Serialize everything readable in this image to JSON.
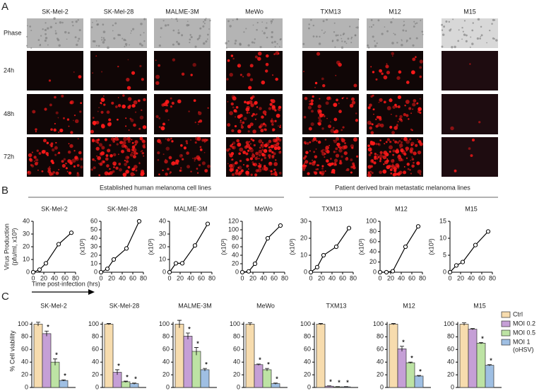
{
  "panel_labels": [
    "A",
    "B",
    "C"
  ],
  "image_panel": {
    "columns": [
      "SK-Mel-2",
      "SK-Mel-28",
      "MALME-3M",
      "MeWo",
      "TXM13",
      "M12",
      "M15"
    ],
    "rows": [
      "Phase",
      "24h",
      "48h",
      "72h"
    ]
  },
  "group_headers": [
    "Established human melanoma cell lines",
    "Patient derived brain metastatic melanoma lines"
  ],
  "x_label": "Time post-infection (hrs)",
  "legend_note": "(oHSV)",
  "chart_data": [
    {
      "type": "line",
      "title": "SK-Mel-2",
      "y_label": [
        "Virus Production",
        "(pfu/ml, x10³)"
      ],
      "x": [
        0,
        12,
        24,
        48,
        72
      ],
      "values": [
        0,
        2,
        7,
        22,
        31
      ],
      "xlim": [
        0,
        80
      ],
      "xticks": [
        0,
        20,
        40,
        60,
        80
      ],
      "ylim": [
        0,
        40
      ],
      "yticks": [
        0,
        10,
        20,
        30,
        40
      ]
    },
    {
      "type": "line",
      "title": "SK-Mel-28",
      "y_label": [
        "(x10³)"
      ],
      "x": [
        0,
        12,
        24,
        48,
        72
      ],
      "values": [
        0,
        4,
        15,
        28,
        60
      ],
      "xlim": [
        0,
        80
      ],
      "xticks": [
        0,
        20,
        40,
        60,
        80
      ],
      "ylim": [
        0,
        60
      ],
      "yticks": [
        0,
        10,
        20,
        30,
        40,
        50,
        60
      ]
    },
    {
      "type": "line",
      "title": "MALME-3M",
      "y_label": [
        "(x10³)"
      ],
      "x": [
        0,
        12,
        24,
        48,
        72
      ],
      "values": [
        0,
        7,
        7,
        21,
        38
      ],
      "xlim": [
        0,
        80
      ],
      "xticks": [
        0,
        20,
        40,
        60,
        80
      ],
      "ylim": [
        0,
        40
      ],
      "yticks": [
        0,
        10,
        20,
        30,
        40
      ]
    },
    {
      "type": "line",
      "title": "MeWo",
      "y_label": [
        "(x10³)"
      ],
      "x": [
        0,
        12,
        24,
        48,
        72
      ],
      "values": [
        0,
        2,
        20,
        80,
        110
      ],
      "xlim": [
        0,
        80
      ],
      "xticks": [
        0,
        20,
        40,
        60,
        80
      ],
      "ylim": [
        0,
        120
      ],
      "yticks": [
        0,
        20,
        40,
        60,
        80,
        100,
        120
      ]
    },
    {
      "type": "line",
      "title": "TXM13",
      "y_label": [
        "(x10³)"
      ],
      "x": [
        0,
        12,
        24,
        48,
        72
      ],
      "values": [
        0,
        3,
        10,
        15,
        26
      ],
      "xlim": [
        0,
        80
      ],
      "xticks": [
        0,
        20,
        40,
        60,
        80
      ],
      "ylim": [
        0,
        30
      ],
      "yticks": [
        0,
        10,
        20,
        30
      ]
    },
    {
      "type": "line",
      "title": "M12",
      "y_label": [
        "(x10³)"
      ],
      "x": [
        0,
        12,
        24,
        48,
        72
      ],
      "values": [
        0,
        0,
        2,
        50,
        90
      ],
      "xlim": [
        0,
        80
      ],
      "xticks": [
        0,
        20,
        40,
        60,
        80
      ],
      "ylim": [
        0,
        100
      ],
      "yticks": [
        0,
        20,
        40,
        60,
        80,
        100
      ]
    },
    {
      "type": "line",
      "title": "M15",
      "y_label": [
        "(x10³)"
      ],
      "x": [
        0,
        12,
        24,
        48,
        72
      ],
      "values": [
        0,
        2,
        3,
        8,
        12
      ],
      "xlim": [
        0,
        80
      ],
      "xticks": [
        0,
        20,
        40,
        60,
        80
      ],
      "ylim": [
        0,
        15
      ],
      "yticks": [
        0,
        5,
        10,
        15
      ]
    },
    {
      "type": "bar",
      "title": "SK-Mel-2",
      "y_label": [
        "% Cell viability"
      ],
      "ylim": [
        0,
        115
      ],
      "yticks": [
        0,
        20,
        40,
        60,
        80,
        100
      ],
      "annotations": [
        null,
        "*",
        "*",
        "*"
      ],
      "series": [
        {
          "name": "Ctrl",
          "color": "#f7dcae",
          "values": [
            100
          ],
          "errors": [
            3
          ]
        },
        {
          "name": "MOI 0.2",
          "color": "#c59fd6",
          "values": [
            85
          ],
          "errors": [
            4
          ]
        },
        {
          "name": "MOI 0.5",
          "color": "#bde3a4",
          "values": [
            40
          ],
          "errors": [
            5
          ]
        },
        {
          "name": "MOI 1",
          "color": "#9fbfe3",
          "values": [
            11
          ],
          "errors": [
            1
          ]
        }
      ]
    },
    {
      "type": "bar",
      "title": "SK-Mel-28",
      "ylim": [
        0,
        115
      ],
      "yticks": [
        0,
        20,
        40,
        60,
        80,
        100
      ],
      "annotations": [
        null,
        "*",
        "*",
        "*"
      ],
      "series": [
        {
          "name": "Ctrl",
          "color": "#f7dcae",
          "values": [
            100
          ],
          "errors": [
            1
          ]
        },
        {
          "name": "MOI 0.2",
          "color": "#c59fd6",
          "values": [
            24
          ],
          "errors": [
            4
          ]
        },
        {
          "name": "MOI 0.5",
          "color": "#bde3a4",
          "values": [
            9
          ],
          "errors": [
            1
          ]
        },
        {
          "name": "MOI 1",
          "color": "#9fbfe3",
          "values": [
            6
          ],
          "errors": [
            1
          ]
        }
      ]
    },
    {
      "type": "bar",
      "title": "MALME-3M",
      "ylim": [
        0,
        115
      ],
      "yticks": [
        0,
        20,
        40,
        60,
        80,
        100
      ],
      "annotations": [
        null,
        "*",
        "*",
        "*"
      ],
      "series": [
        {
          "name": "Ctrl",
          "color": "#f7dcae",
          "values": [
            100
          ],
          "errors": [
            6
          ]
        },
        {
          "name": "MOI 0.2",
          "color": "#c59fd6",
          "values": [
            81
          ],
          "errors": [
            5
          ]
        },
        {
          "name": "MOI 0.5",
          "color": "#bde3a4",
          "values": [
            57
          ],
          "errors": [
            6
          ]
        },
        {
          "name": "MOI 1",
          "color": "#9fbfe3",
          "values": [
            28
          ],
          "errors": [
            2
          ]
        }
      ]
    },
    {
      "type": "bar",
      "title": "MeWo",
      "ylim": [
        0,
        115
      ],
      "yticks": [
        0,
        20,
        40,
        60,
        80,
        100
      ],
      "annotations": [
        null,
        "*",
        "*",
        "*"
      ],
      "series": [
        {
          "name": "Ctrl",
          "color": "#f7dcae",
          "values": [
            100
          ],
          "errors": [
            2
          ]
        },
        {
          "name": "MOI 0.2",
          "color": "#c59fd6",
          "values": [
            36
          ],
          "errors": [
            1
          ]
        },
        {
          "name": "MOI 0.5",
          "color": "#bde3a4",
          "values": [
            28
          ],
          "errors": [
            2
          ]
        },
        {
          "name": "MOI 1",
          "color": "#9fbfe3",
          "values": [
            6
          ],
          "errors": [
            1
          ]
        }
      ]
    },
    {
      "type": "bar",
      "title": "TXM13",
      "ylim": [
        0,
        115
      ],
      "yticks": [
        0,
        20,
        40,
        60,
        80,
        100
      ],
      "annotations": [
        null,
        "*",
        "*",
        "*"
      ],
      "series": [
        {
          "name": "Ctrl",
          "color": "#f7dcae",
          "values": [
            100
          ],
          "errors": [
            1
          ]
        },
        {
          "name": "MOI 0.2",
          "color": "#c59fd6",
          "values": [
            2
          ],
          "errors": [
            0.5
          ]
        },
        {
          "name": "MOI 0.5",
          "color": "#bde3a4",
          "values": [
            1
          ],
          "errors": [
            0.3
          ]
        },
        {
          "name": "MOI 1",
          "color": "#9fbfe3",
          "values": [
            1
          ],
          "errors": [
            0.3
          ]
        }
      ]
    },
    {
      "type": "bar",
      "title": "M12",
      "ylim": [
        0,
        115
      ],
      "yticks": [
        0,
        20,
        40,
        60,
        80,
        100
      ],
      "annotations": [
        null,
        "*",
        "*",
        "*"
      ],
      "series": [
        {
          "name": "Ctrl",
          "color": "#f7dcae",
          "values": [
            100
          ],
          "errors": [
            1
          ]
        },
        {
          "name": "MOI 0.2",
          "color": "#c59fd6",
          "values": [
            61
          ],
          "errors": [
            4
          ]
        },
        {
          "name": "MOI 0.5",
          "color": "#bde3a4",
          "values": [
            39
          ],
          "errors": [
            1
          ]
        },
        {
          "name": "MOI 1",
          "color": "#9fbfe3",
          "values": [
            18
          ],
          "errors": [
            1
          ]
        }
      ]
    },
    {
      "type": "bar",
      "title": "M15",
      "ylim": [
        0,
        115
      ],
      "yticks": [
        0,
        20,
        40,
        60,
        80,
        100
      ],
      "annotations": [
        null,
        null,
        "*",
        "*"
      ],
      "series": [
        {
          "name": "Ctrl",
          "color": "#f7dcae",
          "values": [
            100
          ],
          "errors": [
            2
          ]
        },
        {
          "name": "MOI 0.2",
          "color": "#c59fd6",
          "values": [
            92
          ],
          "errors": [
            1
          ]
        },
        {
          "name": "MOI 0.5",
          "color": "#bde3a4",
          "values": [
            70
          ],
          "errors": [
            1
          ]
        },
        {
          "name": "MOI 1",
          "color": "#9fbfe3",
          "values": [
            35
          ],
          "errors": [
            1
          ]
        }
      ]
    }
  ]
}
